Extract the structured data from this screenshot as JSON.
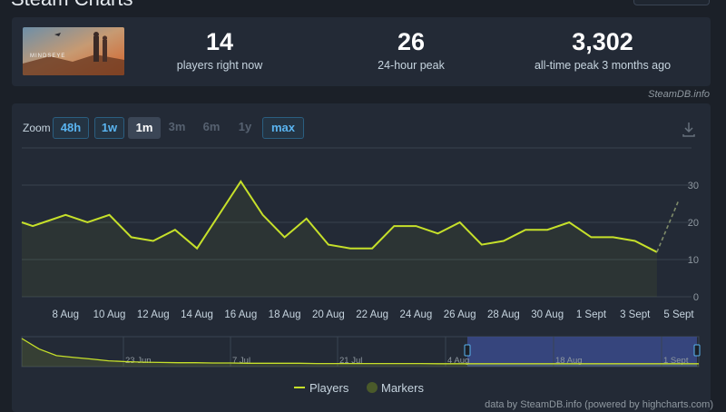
{
  "page": {
    "title": "Steam Charts"
  },
  "game": {
    "thumbnail_text": "MINDSEYE"
  },
  "stats": [
    {
      "value": "14",
      "label": "players right now"
    },
    {
      "value": "26",
      "label": "24-hour peak"
    },
    {
      "value": "3,302",
      "label": "all-time peak 3 months ago"
    }
  ],
  "credits": {
    "top": "SteamDB.info",
    "bottom": "data by SteamDB.info (powered by highcharts.com)"
  },
  "zoom": {
    "label": "Zoom",
    "buttons": [
      {
        "label": "48h",
        "state": "on"
      },
      {
        "label": "1w",
        "state": "on"
      },
      {
        "label": "1m",
        "state": "active"
      },
      {
        "label": "3m",
        "state": "off"
      },
      {
        "label": "6m",
        "state": "off"
      },
      {
        "label": "1y",
        "state": "off"
      },
      {
        "label": "max",
        "state": "on"
      }
    ]
  },
  "colors": {
    "line": "#c6e02a",
    "navigator_selection": "#3a4a8a",
    "marker": "#4a5a2a"
  },
  "chart_data": {
    "type": "line",
    "ylim": [
      0,
      30
    ],
    "yticks": [
      0,
      10,
      20,
      30
    ],
    "xlim": [
      "2025-08-06",
      "2025-09-05"
    ],
    "xticks": [
      {
        "label": "8 Aug",
        "date": "2025-08-08"
      },
      {
        "label": "10 Aug",
        "date": "2025-08-10"
      },
      {
        "label": "12 Aug",
        "date": "2025-08-12"
      },
      {
        "label": "14 Aug",
        "date": "2025-08-14"
      },
      {
        "label": "16 Aug",
        "date": "2025-08-16"
      },
      {
        "label": "18 Aug",
        "date": "2025-08-18"
      },
      {
        "label": "20 Aug",
        "date": "2025-08-20"
      },
      {
        "label": "22 Aug",
        "date": "2025-08-22"
      },
      {
        "label": "24 Aug",
        "date": "2025-08-24"
      },
      {
        "label": "26 Aug",
        "date": "2025-08-26"
      },
      {
        "label": "28 Aug",
        "date": "2025-08-28"
      },
      {
        "label": "30 Aug",
        "date": "2025-08-30"
      },
      {
        "label": "1 Sept",
        "date": "2025-09-01"
      },
      {
        "label": "3 Sept",
        "date": "2025-09-03"
      },
      {
        "label": "5 Sept",
        "date": "2025-09-05"
      }
    ],
    "grid": true,
    "legend": {
      "position": "bottom-center",
      "items": [
        "Players",
        "Markers"
      ]
    },
    "series": [
      {
        "name": "Players",
        "points": [
          [
            "2025-08-06",
            20
          ],
          [
            "2025-08-06 12:00",
            19
          ],
          [
            "2025-08-07",
            20
          ],
          [
            "2025-08-08",
            22
          ],
          [
            "2025-08-09",
            20
          ],
          [
            "2025-08-10",
            22
          ],
          [
            "2025-08-11",
            16
          ],
          [
            "2025-08-12",
            15
          ],
          [
            "2025-08-13",
            18
          ],
          [
            "2025-08-14",
            13
          ],
          [
            "2025-08-15",
            22
          ],
          [
            "2025-08-16",
            31
          ],
          [
            "2025-08-17",
            22
          ],
          [
            "2025-08-18",
            16
          ],
          [
            "2025-08-19",
            21
          ],
          [
            "2025-08-20",
            14
          ],
          [
            "2025-08-21",
            13
          ],
          [
            "2025-08-22",
            13
          ],
          [
            "2025-08-23",
            19
          ],
          [
            "2025-08-24",
            19
          ],
          [
            "2025-08-25",
            17
          ],
          [
            "2025-08-26",
            20
          ],
          [
            "2025-08-27",
            14
          ],
          [
            "2025-08-28",
            15
          ],
          [
            "2025-08-29",
            18
          ],
          [
            "2025-08-30",
            18
          ],
          [
            "2025-08-31",
            20
          ],
          [
            "2025-09-01",
            16
          ],
          [
            "2025-09-02",
            16
          ],
          [
            "2025-09-03",
            15
          ],
          [
            "2025-09-04",
            12
          ]
        ],
        "projection": [
          [
            "2025-09-04",
            12
          ],
          [
            "2025-09-05",
            26
          ]
        ]
      }
    ],
    "navigator": {
      "tick_labels": [
        "23 Jun",
        "7 Jul",
        "21 Jul",
        "4 Aug",
        "18 Aug",
        "1 Sept"
      ],
      "overview": [
        100,
        60,
        35,
        28,
        22,
        15,
        12,
        10,
        9,
        8,
        8,
        7,
        7,
        6,
        6,
        6,
        6,
        5,
        5,
        5,
        5,
        5,
        5,
        5,
        4,
        4,
        4,
        4,
        4,
        4,
        4,
        4,
        4,
        4,
        4,
        4,
        4,
        4,
        4,
        4
      ],
      "selected_range": [
        "4 Aug",
        "5 Sept"
      ]
    }
  }
}
